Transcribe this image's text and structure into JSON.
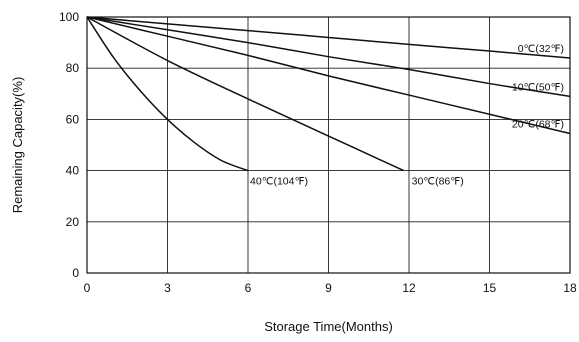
{
  "chart_data": {
    "type": "line",
    "title": "",
    "xlabel": "Storage Time(Months)",
    "ylabel": "Remaining Capacity(%)",
    "xlim": [
      0,
      18
    ],
    "ylim": [
      0,
      100
    ],
    "xticks": [
      0,
      3,
      6,
      9,
      12,
      15,
      18
    ],
    "yticks": [
      0,
      20,
      40,
      60,
      80,
      100
    ],
    "grid": true,
    "legend": "none",
    "series": [
      {
        "name": "0℃(32℉)",
        "x": [
          0,
          3,
          6,
          9,
          12,
          15,
          18
        ],
        "y": [
          100,
          97.3,
          94.7,
          92.0,
          89.3,
          86.7,
          84.0
        ]
      },
      {
        "name": "10℃(50℉)",
        "x": [
          0,
          3,
          6,
          9,
          12,
          15,
          18
        ],
        "y": [
          100,
          95.0,
          90.0,
          84.5,
          79.5,
          74.0,
          69.0
        ]
      },
      {
        "name": "20℃(68℉)",
        "x": [
          0,
          3,
          6,
          9,
          12,
          15,
          18
        ],
        "y": [
          100,
          92.5,
          85.0,
          77.0,
          69.5,
          62.0,
          54.5
        ]
      },
      {
        "name": "30℃(86℉)",
        "x": [
          0,
          3,
          6,
          9,
          11.8
        ],
        "y": [
          100,
          83.0,
          68.0,
          53.5,
          40.0
        ]
      },
      {
        "name": "40℃(104℉)",
        "x": [
          0,
          1,
          2,
          3,
          4,
          5,
          6
        ],
        "y": [
          100,
          84.0,
          71.0,
          60.0,
          51.0,
          44.0,
          40.0
        ]
      }
    ]
  }
}
